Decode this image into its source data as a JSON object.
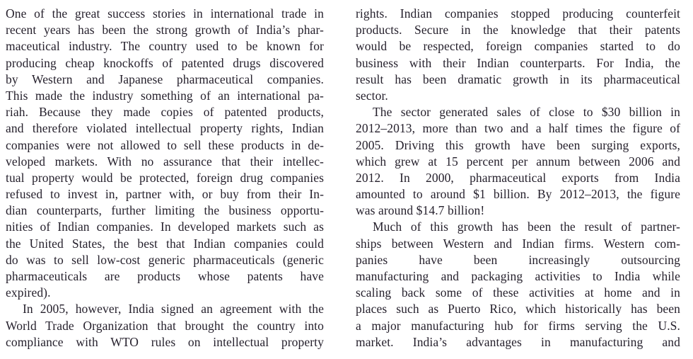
{
  "page": {
    "background_color": "#ffffff",
    "text_color": "#241f2b"
  },
  "document": {
    "type": "two-column-justified-text",
    "columns": [
      {
        "lines": [
          {
            "t": "One of the great success stories in international trade in"
          },
          {
            "t": "recent years has been the strong growth of India’s phar-"
          },
          {
            "t": "maceutical industry. The country used to be known for"
          },
          {
            "t": "producing cheap knockoffs of patented drugs discovered"
          },
          {
            "t": "by Western and Japanese pharmaceutical companies."
          },
          {
            "t": "This made the industry something of an international pa-"
          },
          {
            "t": "riah. Because they made copies of patented products,"
          },
          {
            "t": "and therefore violated intellectual property rights, Indian"
          },
          {
            "t": "companies were not allowed to sell these products in de-"
          },
          {
            "t": "veloped markets. With no assurance that their intellec-"
          },
          {
            "t": "tual property would be protected, foreign drug companies"
          },
          {
            "t": "refused to invest in, partner with, or buy from their In-"
          },
          {
            "t": "dian counterparts, further limiting the business opportu-"
          },
          {
            "t": "nities of Indian companies. In developed markets such as"
          },
          {
            "t": "the United States, the best that Indian companies could"
          },
          {
            "t": "do was to sell low-cost generic pharmaceuticals (generic"
          },
          {
            "t": "pharmaceuticals are products whose patents have"
          },
          {
            "t": "expired).",
            "end": true
          },
          {
            "t": "In 2005, however, India signed an agreement with the",
            "indent": true
          },
          {
            "t": "World Trade Organization that brought the country into"
          },
          {
            "t": "compliance with WTO rules on intellectual property"
          }
        ]
      },
      {
        "lines": [
          {
            "t": "rights. Indian companies stopped producing counterfeit"
          },
          {
            "t": "products. Secure in the knowledge that their patents"
          },
          {
            "t": "would be respected, foreign companies started to do"
          },
          {
            "t": "business with their Indian counterparts. For India, the"
          },
          {
            "t": "result has been dramatic growth in its pharmaceutical"
          },
          {
            "t": "sector.",
            "end": true
          },
          {
            "t": "The sector generated sales of close to $30 billion in",
            "indent": true
          },
          {
            "t": "2012–2013, more than two and a half times the figure of"
          },
          {
            "t": "2005. Driving this growth have been surging exports,"
          },
          {
            "t": "which grew at 15 percent per annum between 2006 and"
          },
          {
            "t": "2012. In 2000, pharmaceutical exports from India"
          },
          {
            "t": "amounted to around $1 billion. By 2012–2013, the figure"
          },
          {
            "t": "was around $14.7 billion!",
            "end": true
          },
          {
            "t": "Much of this growth has been the result of partner-",
            "indent": true
          },
          {
            "t": "ships between Western and Indian firms. Western com-"
          },
          {
            "t": "panies have been increasingly outsourcing"
          },
          {
            "t": "manufacturing and packaging activities to India while"
          },
          {
            "t": "scaling back some of these activities at home and in"
          },
          {
            "t": "places such as Puerto Rico, which historically has been"
          },
          {
            "t": "a major manufacturing hub for firms serving the U.S."
          },
          {
            "t": "market. India’s advantages in manufacturing and"
          }
        ]
      }
    ]
  }
}
